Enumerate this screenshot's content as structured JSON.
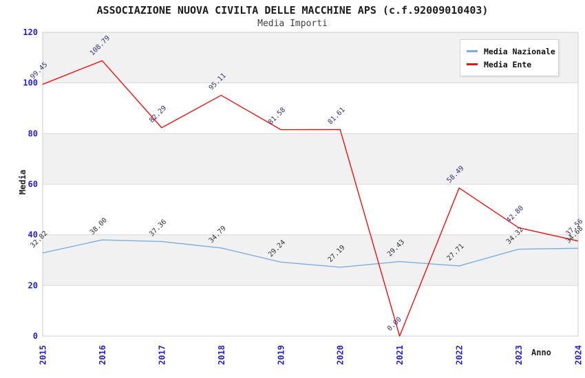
{
  "header": {
    "title": "ASSOCIAZIONE NUOVA CIVILTA DELLE MACCHINE APS (c.f.92009010403)",
    "subtitle": "Media Importi"
  },
  "chart_data": {
    "type": "line",
    "x": [
      2015,
      2016,
      2017,
      2018,
      2019,
      2020,
      2021,
      2022,
      2023,
      2024
    ],
    "xlabel": "Anno",
    "ylabel": "Media",
    "ylim": [
      0,
      120
    ],
    "yticks": [
      0,
      20,
      40,
      60,
      80,
      100,
      120
    ],
    "grid": "horizontal-bands",
    "legend_position": "top-right",
    "series": [
      {
        "name": "Media Nazionale",
        "color": "#7aaee3",
        "label_color": "#333333",
        "values": [
          32.82,
          38.0,
          37.36,
          34.79,
          29.24,
          27.19,
          29.43,
          27.71,
          34.32,
          34.68
        ]
      },
      {
        "name": "Media Ente",
        "color": "#ee1111",
        "label_color": "#333377",
        "values": [
          99.45,
          108.79,
          82.29,
          95.11,
          81.58,
          81.61,
          0.0,
          58.49,
          42.8,
          37.56
        ]
      }
    ],
    "colors": {
      "tick_label": "#2222cc",
      "band": "#f1f1f1",
      "gridline": "#d9d9d9",
      "plot_border": "#cccccc",
      "title": "#1c1c1c",
      "subtitle": "#3f3f3f"
    },
    "label_decimals": 2
  }
}
